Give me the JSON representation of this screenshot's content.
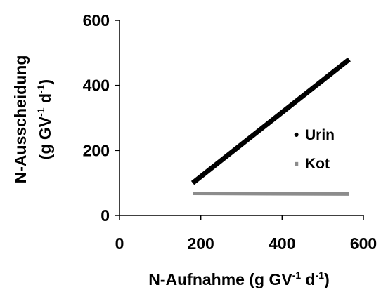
{
  "chart_data": {
    "type": "line",
    "xlabel_parts": [
      "N-Aufnahme (g GV",
      "-1",
      " d",
      "-1",
      ")"
    ],
    "ylabel_line1": "N-Ausscheidung",
    "ylabel_line2_parts": [
      "(g GV",
      "-1",
      " d",
      "-1",
      ")"
    ],
    "xlim": [
      0,
      600
    ],
    "ylim": [
      0,
      600
    ],
    "xticks": [
      0,
      200,
      400,
      600
    ],
    "yticks": [
      0,
      200,
      400,
      600
    ],
    "grid": false,
    "legend_position": "right",
    "series": [
      {
        "name": "Urin",
        "color": "#000000",
        "marker": "•",
        "x": [
          180,
          565
        ],
        "y": [
          100,
          480
        ]
      },
      {
        "name": "Kot",
        "color": "#8c8c8c",
        "marker": "▪",
        "x": [
          180,
          565
        ],
        "y": [
          68,
          66
        ]
      }
    ]
  }
}
